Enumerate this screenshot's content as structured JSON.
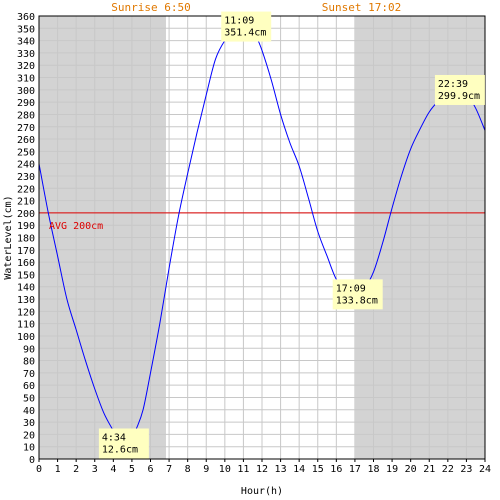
{
  "chart_data": {
    "type": "line",
    "xlabel": "Hour(h)",
    "ylabel": "WaterLevel(cm)",
    "xlim": [
      0,
      24
    ],
    "ylim": [
      0,
      360
    ],
    "x_ticks": [
      0,
      1,
      2,
      3,
      4,
      5,
      6,
      7,
      8,
      9,
      10,
      11,
      12,
      13,
      14,
      15,
      16,
      17,
      18,
      19,
      20,
      21,
      22,
      23,
      24
    ],
    "y_ticks": [
      0,
      10,
      20,
      30,
      40,
      50,
      60,
      70,
      80,
      90,
      100,
      110,
      120,
      130,
      140,
      150,
      160,
      170,
      180,
      190,
      200,
      210,
      220,
      230,
      240,
      250,
      260,
      270,
      280,
      290,
      300,
      310,
      320,
      330,
      340,
      350,
      360
    ],
    "grid": true,
    "sunrise": {
      "label": "Sunrise 6:50",
      "hour": 6.833
    },
    "sunset": {
      "label": "Sunset 17:02",
      "hour": 17.033
    },
    "average": {
      "label": "AVG 200cm",
      "value": 200
    },
    "series": [
      {
        "x": [
          0,
          0.5,
          1,
          1.5,
          2,
          2.5,
          3,
          3.5,
          4,
          4.25,
          4.567,
          4.9,
          5.25,
          5.6,
          6,
          6.5,
          7,
          7.5,
          8,
          8.5,
          9,
          9.5,
          10,
          10.5,
          10.9,
          11.15,
          11.4,
          11.7,
          12,
          12.5,
          13,
          13.5,
          14,
          14.5,
          15,
          15.5,
          16,
          16.5,
          16.8,
          17.15,
          17.5,
          18,
          18.5,
          19,
          19.5,
          20,
          20.5,
          21,
          21.5,
          22,
          22.3,
          22.65,
          23,
          23.5,
          24
        ],
        "values": [
          240,
          200,
          165,
          130,
          105,
          80,
          57,
          37,
          23,
          17,
          12.6,
          14,
          25,
          40,
          70,
          110,
          155,
          197,
          232,
          265,
          296,
          325,
          340,
          348,
          351,
          351.4,
          350,
          343,
          332,
          308,
          280,
          257,
          238,
          212,
          185,
          165,
          146,
          138,
          135,
          133.8,
          138,
          152,
          176,
          204,
          230,
          252,
          268,
          282,
          291,
          297,
          299.5,
          299.9,
          297,
          285,
          267
        ]
      }
    ],
    "annotations": [
      {
        "time": "4:34",
        "value": "12.6cm",
        "x": 4.567,
        "y": 12.6
      },
      {
        "time": "11:09",
        "value": "351.4cm",
        "x": 11.15,
        "y": 351.4
      },
      {
        "time": "17:09",
        "value": "133.8cm",
        "x": 17.15,
        "y": 133.8
      },
      {
        "time": "22:39",
        "value": "299.9cm",
        "x": 22.65,
        "y": 299.9
      }
    ]
  },
  "colors": {
    "night": "#d3d3d3",
    "day": "#ffffff",
    "grid": "#c8c8c8",
    "curve": "#0000ff",
    "average": "#dd0000",
    "sun_label": "#e07800",
    "annotation_bg": "#ffffc0"
  }
}
